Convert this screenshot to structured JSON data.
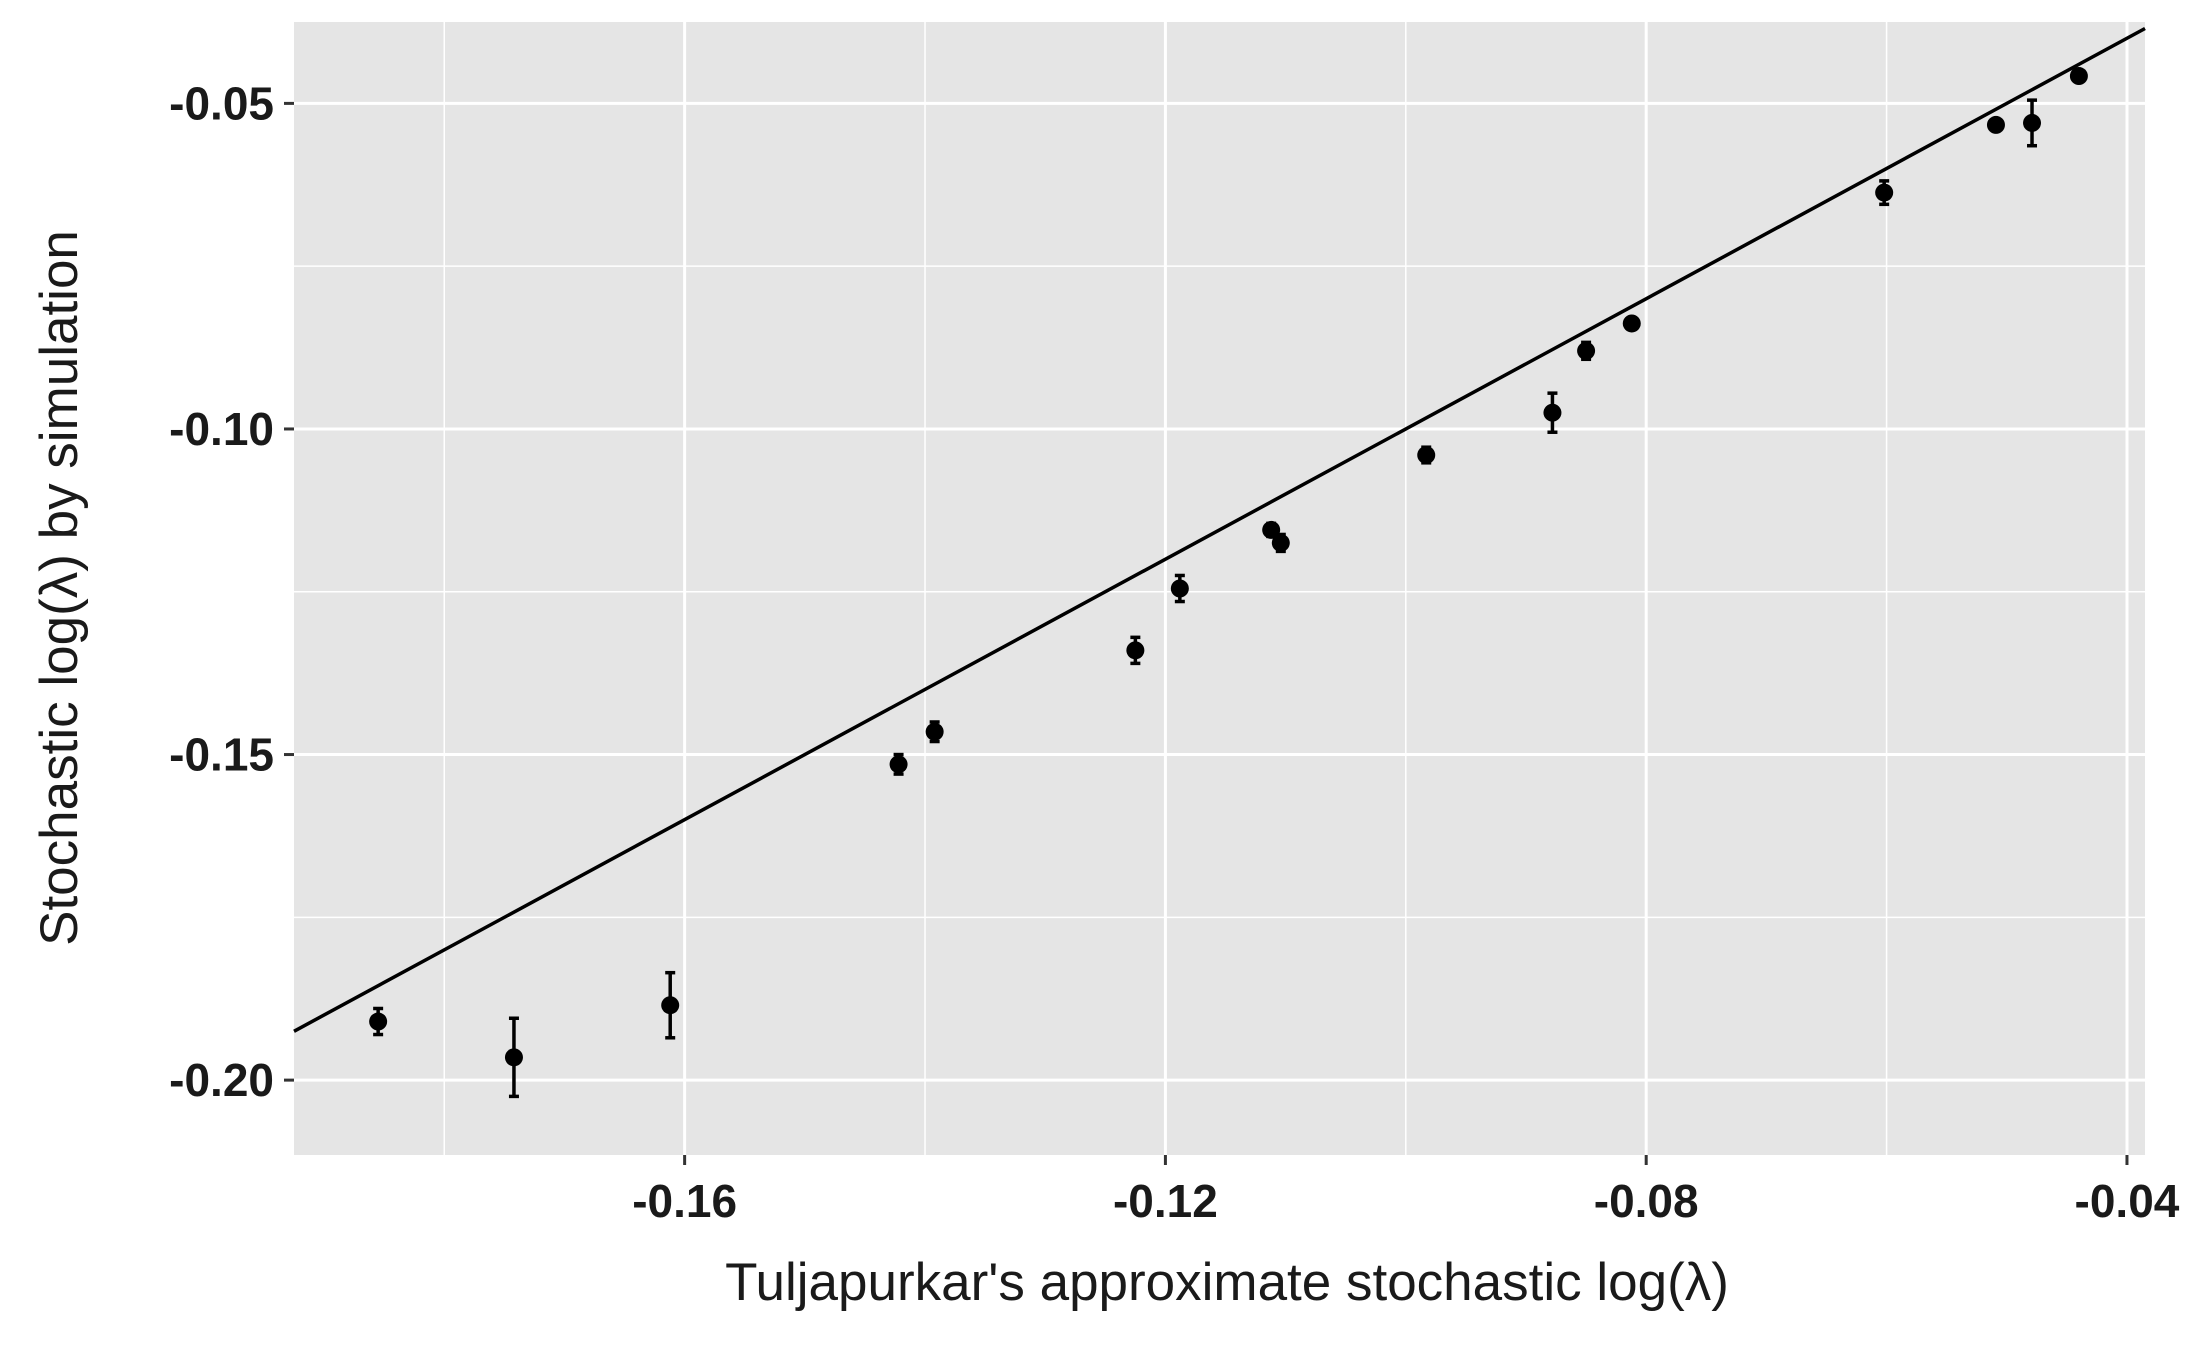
{
  "chart_data": {
    "type": "scatter",
    "title": "",
    "xlabel": "Tuljapurkar's approximate stochastic log(λ)",
    "ylabel": "Stochastic log(λ) by simulation",
    "xlim": [
      -0.1925,
      -0.0385
    ],
    "ylim": [
      -0.2115,
      -0.0375
    ],
    "x_ticks": [
      -0.16,
      -0.12,
      -0.08,
      -0.04
    ],
    "x_tick_labels": [
      "-0.16",
      "-0.12",
      "-0.08",
      "-0.04"
    ],
    "y_ticks": [
      -0.2,
      -0.15,
      -0.1,
      -0.05
    ],
    "y_tick_labels": [
      "-0.20",
      "-0.15",
      "-0.10",
      "-0.05"
    ],
    "grid": true,
    "background": "#e5e5e5",
    "gridline_color": "#ffffff",
    "point_color": "#000000",
    "reference_line": {
      "slope": 1,
      "intercept": 0
    },
    "points": [
      {
        "x": -0.1855,
        "y": -0.191,
        "ymin": -0.193,
        "ymax": -0.189
      },
      {
        "x": -0.1742,
        "y": -0.1965,
        "ymin": -0.2025,
        "ymax": -0.1905
      },
      {
        "x": -0.1612,
        "y": -0.1885,
        "ymin": -0.1935,
        "ymax": -0.1835
      },
      {
        "x": -0.1422,
        "y": -0.1515,
        "ymin": -0.153,
        "ymax": -0.15
      },
      {
        "x": -0.1392,
        "y": -0.1465,
        "ymin": -0.148,
        "ymax": -0.145
      },
      {
        "x": -0.1225,
        "y": -0.134,
        "ymin": -0.136,
        "ymax": -0.132
      },
      {
        "x": -0.1188,
        "y": -0.1245,
        "ymin": -0.1265,
        "ymax": -0.1225
      },
      {
        "x": -0.1112,
        "y": -0.1155,
        "ymin": -0.1165,
        "ymax": -0.1145
      },
      {
        "x": -0.1104,
        "y": -0.1175,
        "ymin": -0.1188,
        "ymax": -0.1162
      },
      {
        "x": -0.0983,
        "y": -0.104,
        "ymin": -0.1052,
        "ymax": -0.1028
      },
      {
        "x": -0.0878,
        "y": -0.0975,
        "ymin": -0.1005,
        "ymax": -0.0945
      },
      {
        "x": -0.085,
        "y": -0.088,
        "ymin": -0.0893,
        "ymax": -0.0867
      },
      {
        "x": -0.0812,
        "y": -0.0838,
        "ymin": -0.0846,
        "ymax": -0.083
      },
      {
        "x": -0.0602,
        "y": -0.0637,
        "ymin": -0.0655,
        "ymax": -0.0619
      },
      {
        "x": -0.0509,
        "y": -0.0533,
        "ymin": -0.0541,
        "ymax": -0.0525
      },
      {
        "x": -0.0479,
        "y": -0.053,
        "ymin": -0.0565,
        "ymax": -0.0495
      },
      {
        "x": -0.044,
        "y": -0.0458,
        "ymin": -0.0466,
        "ymax": -0.045
      }
    ]
  }
}
